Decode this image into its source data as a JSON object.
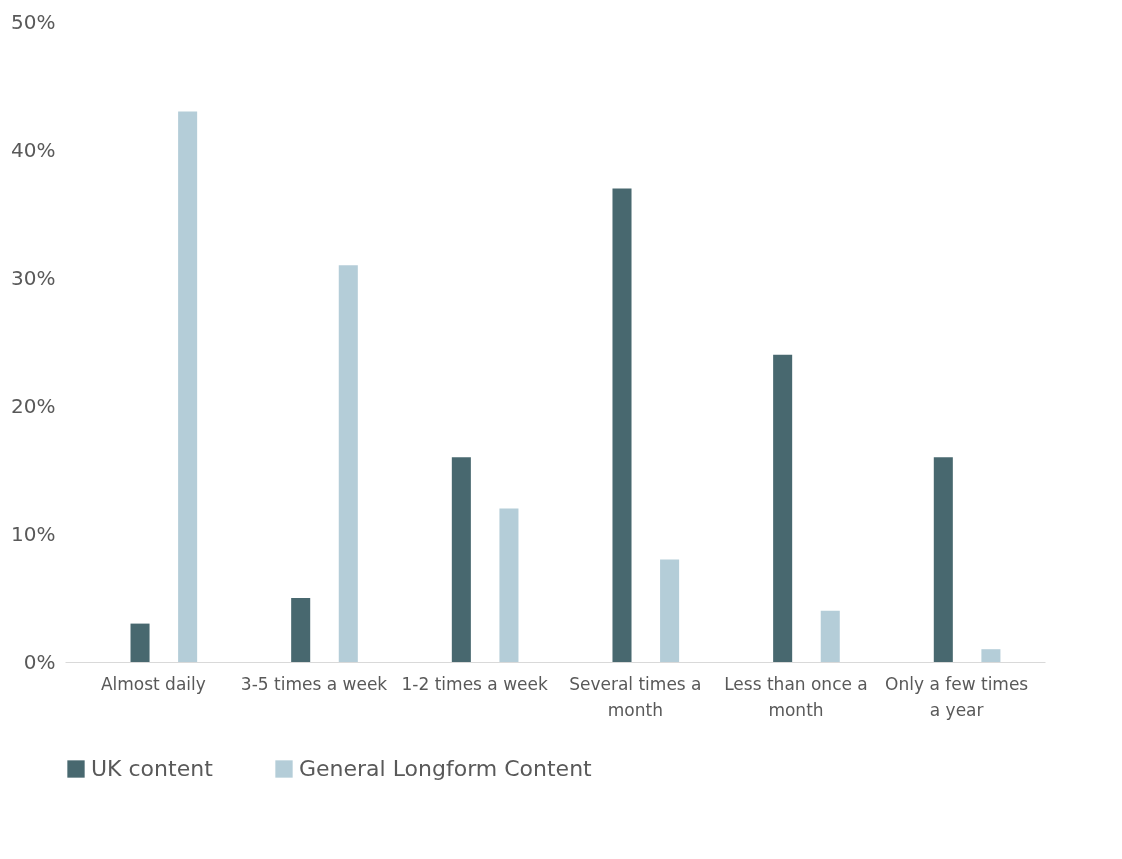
{
  "chart_data": {
    "type": "bar",
    "categories": [
      "Almost daily",
      "3-5 times a week",
      "1-2 times a week",
      "Several times a month",
      "Less than once a month",
      "Only a few times a year"
    ],
    "series": [
      {
        "name": "UK content",
        "color": "#48686f",
        "values": [
          3,
          5,
          16,
          37,
          24,
          16
        ]
      },
      {
        "name": "General Longform Content",
        "color": "#b4cdd8",
        "values": [
          43,
          31,
          12,
          8,
          4,
          1
        ]
      }
    ],
    "ylim": [
      0,
      50
    ],
    "yticks": [
      {
        "value": 0,
        "label": "0%"
      },
      {
        "value": 10,
        "label": "10%"
      },
      {
        "value": 20,
        "label": "20%"
      },
      {
        "value": 30,
        "label": "30%"
      },
      {
        "value": 40,
        "label": "40%"
      },
      {
        "value": 50,
        "label": "50%"
      }
    ],
    "grid": false,
    "legend": "bottom"
  }
}
